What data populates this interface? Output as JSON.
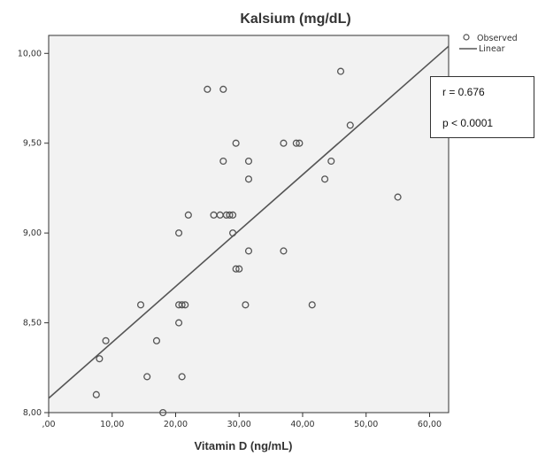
{
  "chart_data": {
    "type": "scatter",
    "title": "Kalsium (mg/dL)",
    "xlabel": "Vitamin D (ng/mL)",
    "ylabel": "",
    "xlim": [
      0,
      63
    ],
    "ylim": [
      8.0,
      10.1
    ],
    "x_ticks": [
      0,
      10,
      20,
      30,
      40,
      50,
      60
    ],
    "x_tick_labels": [
      ",00",
      "10,00",
      "20,00",
      "30,00",
      "40,00",
      "50,00",
      "60,00"
    ],
    "y_ticks": [
      8.0,
      8.5,
      9.0,
      9.5,
      10.0
    ],
    "y_tick_labels": [
      "8,00",
      "8,50",
      "9,00",
      "9,50",
      "10,00"
    ],
    "grid": false,
    "legend": {
      "placement": "top-right-outside",
      "entries": [
        {
          "label": "Observed",
          "marker": "circle-open"
        },
        {
          "label": "Linear",
          "marker": "line"
        }
      ]
    },
    "series": [
      {
        "name": "Observed",
        "type": "scatter",
        "points": [
          [
            7.5,
            8.1
          ],
          [
            8.0,
            8.3
          ],
          [
            9.0,
            8.4
          ],
          [
            14.5,
            8.6
          ],
          [
            15.5,
            8.2
          ],
          [
            17.0,
            8.4
          ],
          [
            18.0,
            8.0
          ],
          [
            20.5,
            8.6
          ],
          [
            21.0,
            8.6
          ],
          [
            21.5,
            8.6
          ],
          [
            20.5,
            8.5
          ],
          [
            21.0,
            8.2
          ],
          [
            20.5,
            9.0
          ],
          [
            22.0,
            9.1
          ],
          [
            25.0,
            9.8
          ],
          [
            26.0,
            9.1
          ],
          [
            27.0,
            9.1
          ],
          [
            27.5,
            9.8
          ],
          [
            27.5,
            9.4
          ],
          [
            28.0,
            9.1
          ],
          [
            28.5,
            9.1
          ],
          [
            29.0,
            9.1
          ],
          [
            29.0,
            9.0
          ],
          [
            29.5,
            9.5
          ],
          [
            29.5,
            8.8
          ],
          [
            30.0,
            8.8
          ],
          [
            31.0,
            8.6
          ],
          [
            31.5,
            9.4
          ],
          [
            31.5,
            9.3
          ],
          [
            31.5,
            8.9
          ],
          [
            37.0,
            9.5
          ],
          [
            37.0,
            8.9
          ],
          [
            39.0,
            9.5
          ],
          [
            39.5,
            9.5
          ],
          [
            41.5,
            8.6
          ],
          [
            43.5,
            9.3
          ],
          [
            44.5,
            9.4
          ],
          [
            46.0,
            9.9
          ],
          [
            47.5,
            9.6
          ],
          [
            55.0,
            9.2
          ]
        ]
      },
      {
        "name": "Linear",
        "type": "line",
        "points": [
          [
            0,
            8.08
          ],
          [
            63,
            10.04
          ]
        ]
      }
    ],
    "annotations": [
      "r = 0.676",
      "p < 0.0001"
    ]
  },
  "colors": {
    "plot_background": "#f2f2f2",
    "marker_stroke": "#555555",
    "fit_line": "#555555",
    "axis": "#333333"
  }
}
